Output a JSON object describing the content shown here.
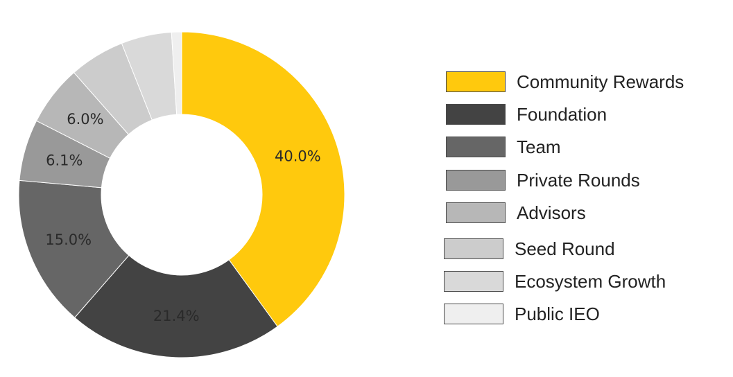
{
  "chart_data": {
    "type": "pie",
    "title": "",
    "categories": [
      "Community Rewards",
      "Foundation",
      "Team",
      "Private Rounds",
      "Advisors",
      "Seed Round",
      "Ecosystem Growth",
      "Public IEO"
    ],
    "values": [
      40.0,
      21.4,
      15.0,
      6.1,
      6.0,
      5.5,
      5.0,
      1.0
    ],
    "value_labels": [
      "40.0%",
      "21.4%",
      "15.0%",
      "6.1%",
      "6.0%",
      "",
      "",
      ""
    ],
    "colors": [
      "#FFC90D",
      "#434343",
      "#666666",
      "#999999",
      "#B7B7B7",
      "#CCCCCC",
      "#D9D9D9",
      "#EFEFEF"
    ],
    "donut": true,
    "legend": "right"
  }
}
